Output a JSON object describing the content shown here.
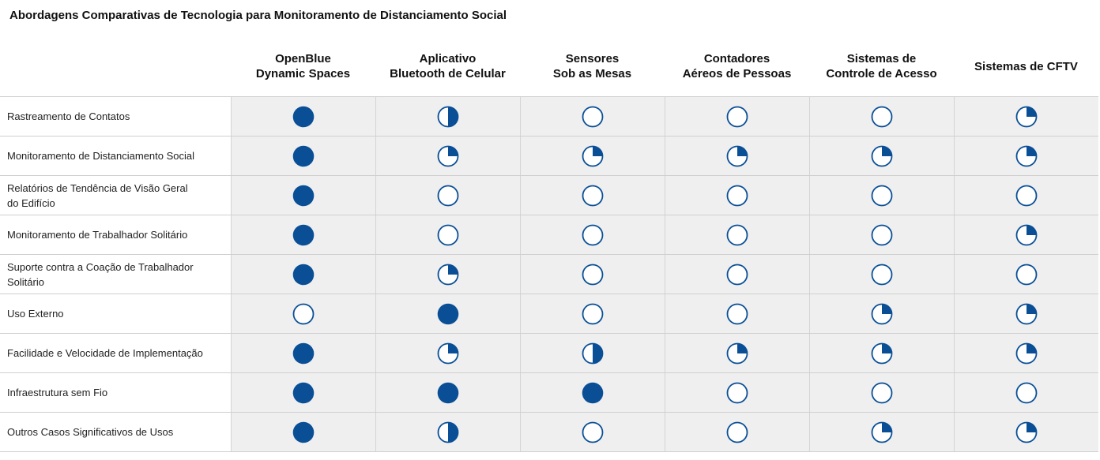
{
  "title": "Abordagens Comparativas de Tecnologia para Monitoramento de Distanciamento Social",
  "colors": {
    "accent": "#0a4f96",
    "shade": "#efefef",
    "grid": "#cfcfcf"
  },
  "columns": [
    "OpenBlue\nDynamic Spaces",
    "Aplicativo\nBluetooth de Celular",
    "Sensores\nSob as Mesas",
    "Contadores\nAéreos de Pessoas",
    "Sistemas de\nControle de Acesso",
    "Sistemas de CFTV"
  ],
  "rating_scale": {
    "0": "empty-circle-icon",
    "0.25": "quarter-circle-icon",
    "0.5": "half-circle-icon",
    "1": "full-circle-icon"
  },
  "rows": [
    {
      "label": "Rastreamento de Contatos",
      "ratings": [
        1,
        0.5,
        0,
        0,
        0,
        0.25
      ]
    },
    {
      "label": "Monitoramento de Distanciamento Social",
      "ratings": [
        1,
        0.25,
        0.25,
        0.25,
        0.25,
        0.25
      ]
    },
    {
      "label": "Relatórios de Tendência de Visão Geral\ndo Edifício",
      "ratings": [
        1,
        0,
        0,
        0,
        0,
        0
      ]
    },
    {
      "label": "Monitoramento de Trabalhador Solitário",
      "ratings": [
        1,
        0,
        0,
        0,
        0,
        0.25
      ]
    },
    {
      "label": "Suporte contra a Coação de Trabalhador\nSolitário",
      "ratings": [
        1,
        0.25,
        0,
        0,
        0,
        0
      ]
    },
    {
      "label": "Uso Externo",
      "ratings": [
        0,
        1,
        0,
        0,
        0.25,
        0.25
      ]
    },
    {
      "label": "Facilidade e Velocidade de Implementação",
      "ratings": [
        1,
        0.25,
        0.5,
        0.25,
        0.25,
        0.25
      ]
    },
    {
      "label": "Infraestrutura sem Fio",
      "ratings": [
        1,
        1,
        1,
        0,
        0,
        0
      ]
    },
    {
      "label": "Outros Casos Significativos de Usos",
      "ratings": [
        1,
        0.5,
        0,
        0,
        0.25,
        0.25
      ]
    }
  ]
}
